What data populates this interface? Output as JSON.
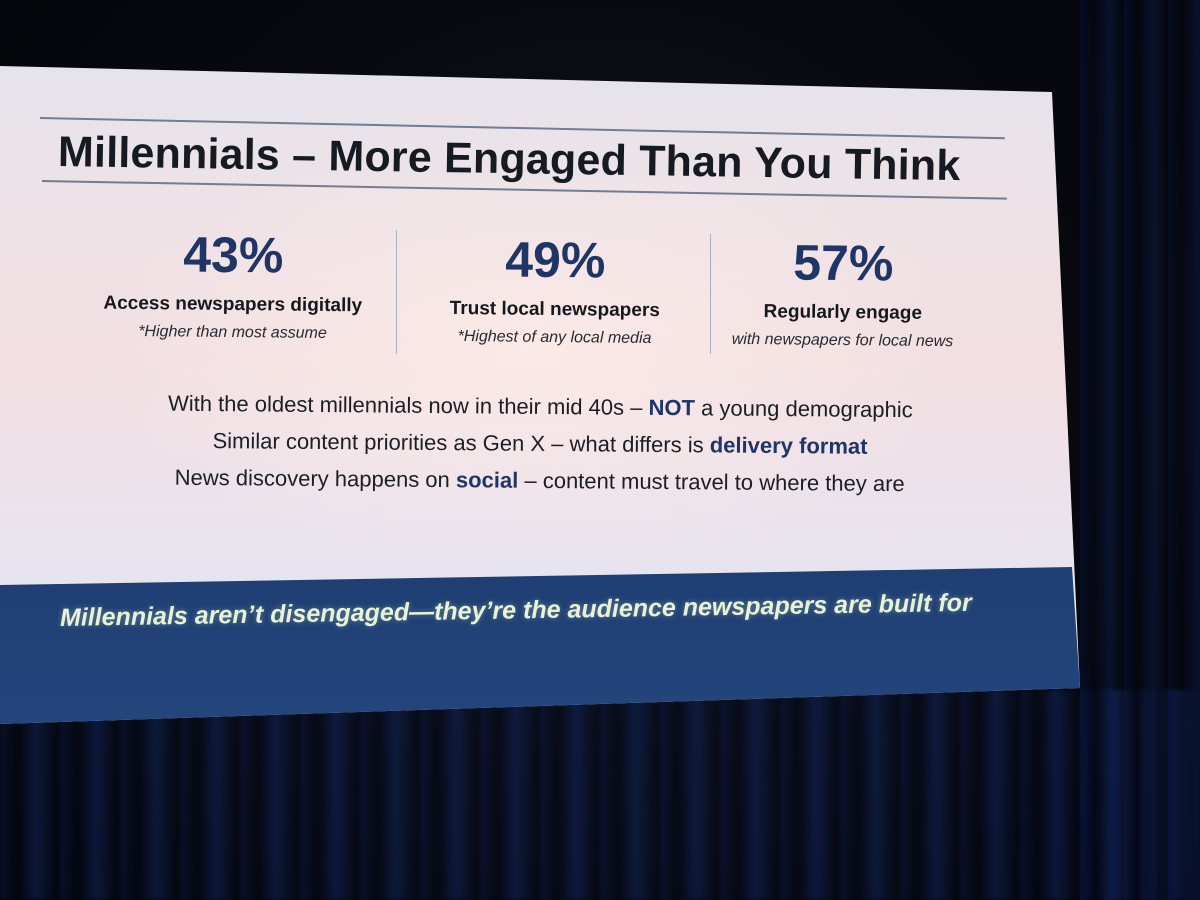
{
  "slide": {
    "title": "Millennials – More Engaged Than You Think",
    "stats": [
      {
        "value": "43%",
        "label": "Access newspapers digitally",
        "note": "*Higher than most assume"
      },
      {
        "value": "49%",
        "label": "Trust local newspapers",
        "note": "*Highest of any local media"
      },
      {
        "value": "57%",
        "label": "Regularly engage",
        "note": "with newspapers for local news"
      }
    ],
    "bullets": [
      {
        "before": "With the oldest millennials now in their mid 40s – ",
        "bold": "NOT",
        "after": " a young demographic"
      },
      {
        "before": "Similar content priorities as Gen X – what differs is ",
        "bold": "delivery format",
        "after": ""
      },
      {
        "before": "News discovery happens on ",
        "bold": "social",
        "after": " – content must travel to where they are"
      }
    ],
    "banner": "Millennials aren’t disengaged—they’re the audience newspapers are built for"
  },
  "colors": {
    "accent": "#1f3566",
    "banner": "#1c3a6f",
    "banner_text": "#e8f2d6",
    "background": "#05070d"
  }
}
